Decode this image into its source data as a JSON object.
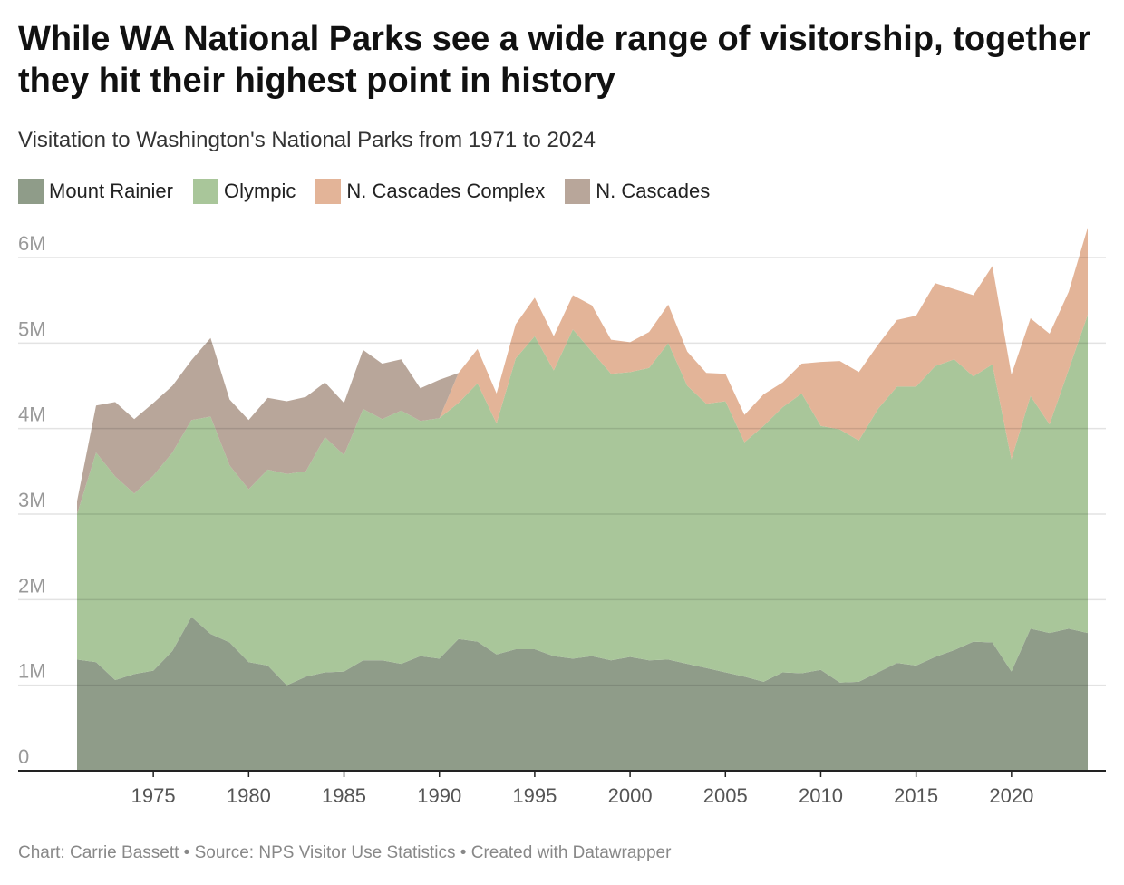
{
  "chart_data": {
    "type": "area",
    "stacked": true,
    "title": "While WA National Parks see a wide range of visitorship, together they hit their highest point in history",
    "subtitle": "Visitation to Washington's National Parks from 1971 to 2024",
    "x": [
      1971,
      1972,
      1973,
      1974,
      1975,
      1976,
      1977,
      1978,
      1979,
      1980,
      1981,
      1982,
      1983,
      1984,
      1985,
      1986,
      1987,
      1988,
      1989,
      1990,
      1991,
      1992,
      1993,
      1994,
      1995,
      1996,
      1997,
      1998,
      1999,
      2000,
      2001,
      2002,
      2003,
      2004,
      2005,
      2006,
      2007,
      2008,
      2009,
      2010,
      2011,
      2012,
      2013,
      2014,
      2015,
      2016,
      2017,
      2018,
      2019,
      2020,
      2021,
      2022,
      2023,
      2024
    ],
    "series": [
      {
        "name": "Mount Rainier",
        "color": "#8f9c89",
        "values": [
          1.3,
          1.27,
          1.06,
          1.13,
          1.17,
          1.4,
          1.8,
          1.6,
          1.5,
          1.27,
          1.23,
          1.0,
          1.1,
          1.15,
          1.16,
          1.29,
          1.29,
          1.25,
          1.34,
          1.31,
          1.54,
          1.51,
          1.36,
          1.42,
          1.42,
          1.34,
          1.31,
          1.34,
          1.29,
          1.33,
          1.29,
          1.3,
          1.25,
          1.2,
          1.15,
          1.1,
          1.04,
          1.15,
          1.14,
          1.18,
          1.03,
          1.04,
          1.15,
          1.26,
          1.23,
          1.33,
          1.41,
          1.51,
          1.5,
          1.16,
          1.66,
          1.61,
          1.66,
          1.61
        ]
      },
      {
        "name": "Olympic",
        "color": "#a9c69a",
        "values": [
          1.7,
          2.45,
          2.38,
          2.11,
          2.28,
          2.32,
          2.3,
          2.54,
          2.07,
          2.02,
          2.29,
          2.47,
          2.4,
          2.75,
          2.53,
          2.94,
          2.82,
          2.96,
          2.75,
          2.81,
          2.76,
          3.02,
          2.7,
          3.4,
          3.66,
          3.34,
          3.85,
          3.56,
          3.35,
          3.33,
          3.42,
          3.7,
          3.25,
          3.09,
          3.17,
          2.74,
          2.99,
          3.1,
          3.27,
          2.85,
          2.96,
          2.82,
          3.08,
          3.23,
          3.26,
          3.4,
          3.4,
          3.1,
          3.25,
          2.48,
          2.72,
          2.44,
          3.03,
          3.72
        ]
      },
      {
        "name": "N. Cascades Complex",
        "color": "#e3b498",
        "values": [
          0,
          0,
          0,
          0,
          0,
          0,
          0,
          0,
          0,
          0,
          0,
          0,
          0,
          0,
          0,
          0,
          0,
          0,
          0,
          0,
          0.35,
          0.4,
          0.35,
          0.4,
          0.45,
          0.4,
          0.4,
          0.54,
          0.4,
          0.35,
          0.42,
          0.45,
          0.4,
          0.36,
          0.32,
          0.32,
          0.37,
          0.29,
          0.35,
          0.75,
          0.8,
          0.8,
          0.75,
          0.78,
          0.83,
          0.97,
          0.82,
          0.95,
          1.15,
          0.99,
          0.91,
          1.06,
          0.91,
          1.02
        ]
      },
      {
        "name": "N. Cascades",
        "color": "#b8a69a",
        "values": [
          0.15,
          0.55,
          0.87,
          0.87,
          0.85,
          0.78,
          0.7,
          0.92,
          0.77,
          0.81,
          0.84,
          0.85,
          0.87,
          0.64,
          0.61,
          0.69,
          0.65,
          0.6,
          0.38,
          0.45,
          0,
          0,
          0,
          0,
          0,
          0,
          0,
          0,
          0,
          0,
          0,
          0,
          0,
          0,
          0,
          0,
          0,
          0,
          0,
          0,
          0,
          0,
          0,
          0,
          0,
          0,
          0,
          0,
          0,
          0,
          0,
          0,
          0,
          0
        ]
      }
    ],
    "unit": "million visits",
    "ylim": [
      0,
      6
    ],
    "y_ticks": [
      0,
      1,
      2,
      3,
      4,
      5,
      6
    ],
    "y_tick_labels": [
      "0",
      "1M",
      "2M",
      "3M",
      "4M",
      "5M",
      "6M"
    ],
    "xlim": [
      1971,
      2024
    ],
    "x_ticks": [
      1975,
      1980,
      1985,
      1990,
      1995,
      2000,
      2005,
      2010,
      2015,
      2020
    ],
    "x_tick_labels": [
      "1975",
      "1980",
      "1985",
      "1990",
      "1995",
      "2000",
      "2005",
      "2010",
      "2015",
      "2020"
    ],
    "legend_position": "top-left",
    "grid": true
  },
  "footer": "Chart: Carrie Bassett • Source: NPS Visitor Use Statistics • Created with Datawrapper"
}
